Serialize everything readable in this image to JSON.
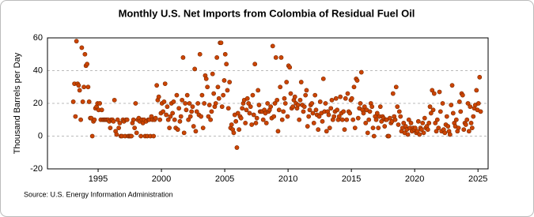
{
  "chart_data": {
    "type": "scatter",
    "title": "Monthly U.S. Net Imports from Colombia of Residual Fuel Oil",
    "y_label": "Thousand Barrels per Day",
    "source": "Source: U.S. Energy Information Administration",
    "color": "#cc4400",
    "grid": true,
    "xlim": [
      1991,
      2025.8
    ],
    "xticks": [
      1995,
      2000,
      2005,
      2010,
      2015,
      2020,
      2025
    ],
    "ylim": [
      -20,
      60
    ],
    "yticks": [
      -20,
      0,
      20,
      40,
      60
    ],
    "x": [
      1993.04,
      1993.13,
      1993.21,
      1993.29,
      1993.38,
      1993.46,
      1993.54,
      1993.63,
      1993.71,
      1993.79,
      1993.88,
      1993.96,
      1994.04,
      1994.13,
      1994.21,
      1994.29,
      1994.38,
      1994.46,
      1994.54,
      1994.63,
      1994.71,
      1994.79,
      1994.88,
      1994.96,
      1995.04,
      1995.13,
      1995.21,
      1995.29,
      1995.38,
      1995.46,
      1995.54,
      1995.63,
      1995.71,
      1995.79,
      1995.88,
      1995.96,
      1996.04,
      1996.13,
      1996.21,
      1996.29,
      1996.38,
      1996.46,
      1996.54,
      1996.63,
      1996.71,
      1996.79,
      1996.88,
      1996.96,
      1997.04,
      1997.13,
      1997.21,
      1997.29,
      1997.38,
      1997.46,
      1997.54,
      1997.63,
      1997.71,
      1997.79,
      1997.88,
      1997.96,
      1998.04,
      1998.13,
      1998.21,
      1998.29,
      1998.38,
      1998.46,
      1998.54,
      1998.63,
      1998.71,
      1998.79,
      1998.88,
      1998.96,
      1999.04,
      1999.13,
      1999.21,
      1999.29,
      1999.38,
      1999.46,
      1999.54,
      1999.63,
      1999.71,
      1999.79,
      1999.88,
      1999.96,
      2000.04,
      2000.13,
      2000.21,
      2000.29,
      2000.38,
      2000.46,
      2000.54,
      2000.63,
      2000.71,
      2000.79,
      2000.88,
      2000.96,
      2001.04,
      2001.13,
      2001.21,
      2001.29,
      2001.38,
      2001.46,
      2001.54,
      2001.63,
      2001.71,
      2001.79,
      2001.88,
      2001.96,
      2002.04,
      2002.13,
      2002.21,
      2002.29,
      2002.38,
      2002.46,
      2002.54,
      2002.63,
      2002.71,
      2002.79,
      2002.88,
      2002.96,
      2003.04,
      2003.13,
      2003.21,
      2003.29,
      2003.38,
      2003.46,
      2003.54,
      2003.63,
      2003.71,
      2003.79,
      2003.88,
      2003.96,
      2004.04,
      2004.13,
      2004.21,
      2004.29,
      2004.38,
      2004.46,
      2004.54,
      2004.63,
      2004.71,
      2004.79,
      2004.88,
      2004.96,
      2005.04,
      2005.13,
      2005.21,
      2005.29,
      2005.38,
      2005.46,
      2005.54,
      2005.63,
      2005.71,
      2005.79,
      2005.88,
      2005.96,
      2006.04,
      2006.13,
      2006.21,
      2006.29,
      2006.38,
      2006.46,
      2006.54,
      2006.63,
      2006.71,
      2006.79,
      2006.88,
      2006.96,
      2007.04,
      2007.13,
      2007.21,
      2007.29,
      2007.38,
      2007.46,
      2007.54,
      2007.63,
      2007.71,
      2007.79,
      2007.88,
      2007.96,
      2008.04,
      2008.13,
      2008.21,
      2008.29,
      2008.38,
      2008.46,
      2008.54,
      2008.63,
      2008.71,
      2008.79,
      2008.88,
      2008.96,
      2009.04,
      2009.13,
      2009.21,
      2009.29,
      2009.38,
      2009.46,
      2009.54,
      2009.63,
      2009.71,
      2009.79,
      2009.88,
      2009.96,
      2010.04,
      2010.13,
      2010.21,
      2010.29,
      2010.38,
      2010.46,
      2010.54,
      2010.63,
      2010.71,
      2010.79,
      2010.88,
      2010.96,
      2011.04,
      2011.13,
      2011.21,
      2011.29,
      2011.38,
      2011.46,
      2011.54,
      2011.63,
      2011.71,
      2011.79,
      2011.88,
      2011.96,
      2012.04,
      2012.13,
      2012.21,
      2012.29,
      2012.38,
      2012.46,
      2012.54,
      2012.63,
      2012.71,
      2012.79,
      2012.88,
      2012.96,
      2013.04,
      2013.13,
      2013.21,
      2013.29,
      2013.38,
      2013.46,
      2013.54,
      2013.63,
      2013.71,
      2013.79,
      2013.88,
      2013.96,
      2014.04,
      2014.13,
      2014.21,
      2014.29,
      2014.38,
      2014.46,
      2014.54,
      2014.63,
      2014.71,
      2014.79,
      2014.88,
      2014.96,
      2015.04,
      2015.13,
      2015.21,
      2015.29,
      2015.38,
      2015.46,
      2015.54,
      2015.63,
      2015.71,
      2015.79,
      2015.88,
      2015.96,
      2016.04,
      2016.13,
      2016.21,
      2016.29,
      2016.38,
      2016.46,
      2016.54,
      2016.63,
      2016.71,
      2016.79,
      2016.88,
      2016.96,
      2017.04,
      2017.13,
      2017.21,
      2017.29,
      2017.38,
      2017.46,
      2017.54,
      2017.63,
      2017.71,
      2017.79,
      2017.88,
      2017.96,
      2018.04,
      2018.13,
      2018.21,
      2018.29,
      2018.38,
      2018.46,
      2018.54,
      2018.63,
      2018.71,
      2018.79,
      2018.88,
      2018.96,
      2019.04,
      2019.13,
      2019.21,
      2019.29,
      2019.38,
      2019.46,
      2019.54,
      2019.63,
      2019.71,
      2019.79,
      2019.88,
      2019.96,
      2020.04,
      2020.13,
      2020.21,
      2020.29,
      2020.38,
      2020.46,
      2020.54,
      2020.63,
      2020.71,
      2020.79,
      2020.88,
      2020.96,
      2021.04,
      2021.13,
      2021.21,
      2021.29,
      2021.38,
      2021.46,
      2021.54,
      2021.63,
      2021.71,
      2021.79,
      2021.88,
      2021.96,
      2022.04,
      2022.13,
      2022.21,
      2022.29,
      2022.38,
      2022.46,
      2022.54,
      2022.63,
      2022.71,
      2022.79,
      2022.88,
      2022.96,
      2023.04,
      2023.13,
      2023.21,
      2023.29,
      2023.38,
      2023.46,
      2023.54,
      2023.63,
      2023.71,
      2023.79,
      2023.88,
      2023.96,
      2024.04,
      2024.13,
      2024.21,
      2024.29,
      2024.38,
      2024.46,
      2024.54,
      2024.63,
      2024.71,
      2024.79,
      2024.88,
      2024.96,
      2025.04,
      2025.13,
      2025.21
    ],
    "values": [
      21,
      32,
      12,
      58,
      32,
      31,
      28,
      10,
      54,
      21,
      30,
      50,
      43,
      44,
      30,
      21,
      11,
      11,
      0,
      9,
      10,
      17,
      18,
      20,
      16,
      20,
      10,
      16,
      10,
      10,
      10,
      10,
      10,
      10,
      9,
      5,
      10,
      10,
      9,
      22,
      3,
      1,
      10,
      5,
      8,
      0,
      0,
      10,
      9,
      0,
      10,
      10,
      0,
      0,
      0,
      0,
      8,
      10,
      5,
      20,
      2,
      10,
      11,
      9,
      0,
      10,
      8,
      10,
      0,
      9,
      0,
      10,
      10,
      0,
      12,
      10,
      0,
      10,
      11,
      31,
      22,
      24,
      10,
      14,
      20,
      15,
      21,
      32,
      13,
      18,
      10,
      5,
      12,
      20,
      14,
      21,
      10,
      5,
      25,
      4,
      17,
      9,
      12,
      22,
      48,
      2,
      20,
      16,
      25,
      10,
      20,
      12,
      15,
      18,
      6,
      41,
      3,
      15,
      20,
      13,
      50,
      12,
      25,
      5,
      20,
      37,
      35,
      30,
      12,
      19,
      10,
      15,
      38,
      26,
      18,
      20,
      48,
      30,
      23,
      57,
      57,
      18,
      25,
      34,
      50,
      44,
      28,
      17,
      33,
      5,
      7,
      4,
      2,
      13,
      9,
      -7,
      14,
      4,
      12,
      11,
      17,
      20,
      22,
      8,
      16,
      23,
      20,
      14,
      18,
      7,
      25,
      13,
      44,
      8,
      11,
      28,
      19,
      15,
      15,
      15,
      10,
      16,
      14,
      8,
      20,
      15,
      16,
      18,
      11,
      55,
      12,
      20,
      48,
      22,
      3,
      16,
      30,
      48,
      10,
      15,
      23,
      20,
      33,
      12,
      43,
      42,
      26,
      17,
      18,
      22,
      24,
      20,
      17,
      19,
      10,
      22,
      33,
      19,
      15,
      18,
      25,
      28,
      6,
      12,
      16,
      19,
      20,
      14,
      8,
      25,
      16,
      13,
      4,
      12,
      21,
      14,
      9,
      35,
      15,
      20,
      3,
      15,
      13,
      5,
      17,
      22,
      10,
      12,
      15,
      23,
      16,
      10,
      12,
      24,
      14,
      10,
      15,
      4,
      23,
      10,
      26,
      15,
      14,
      22,
      23,
      10,
      30,
      5,
      35,
      34,
      11,
      17,
      20,
      39,
      16,
      14,
      18,
      8,
      16,
      2,
      10,
      15,
      20,
      18,
      5,
      0,
      12,
      10,
      14,
      5,
      12,
      18,
      9,
      12,
      11,
      6,
      10,
      10,
      0,
      0,
      11,
      8,
      9,
      26,
      12,
      10,
      30,
      18,
      7,
      15,
      12,
      3,
      5,
      8,
      2,
      6,
      4,
      1,
      10,
      5,
      8,
      3,
      5,
      4,
      5,
      2,
      3,
      9,
      1,
      5,
      4,
      8,
      2,
      11,
      5,
      6,
      4,
      8,
      18,
      14,
      28,
      16,
      26,
      8,
      3,
      10,
      5,
      27,
      15,
      3,
      20,
      4,
      2,
      7,
      12,
      6,
      3,
      1,
      19,
      31,
      14,
      8,
      6,
      10,
      3,
      5,
      21,
      15,
      26,
      25,
      4,
      8,
      7,
      10,
      20,
      3,
      18,
      8,
      5,
      12,
      17,
      19,
      28,
      16,
      20,
      36,
      15
    ]
  }
}
